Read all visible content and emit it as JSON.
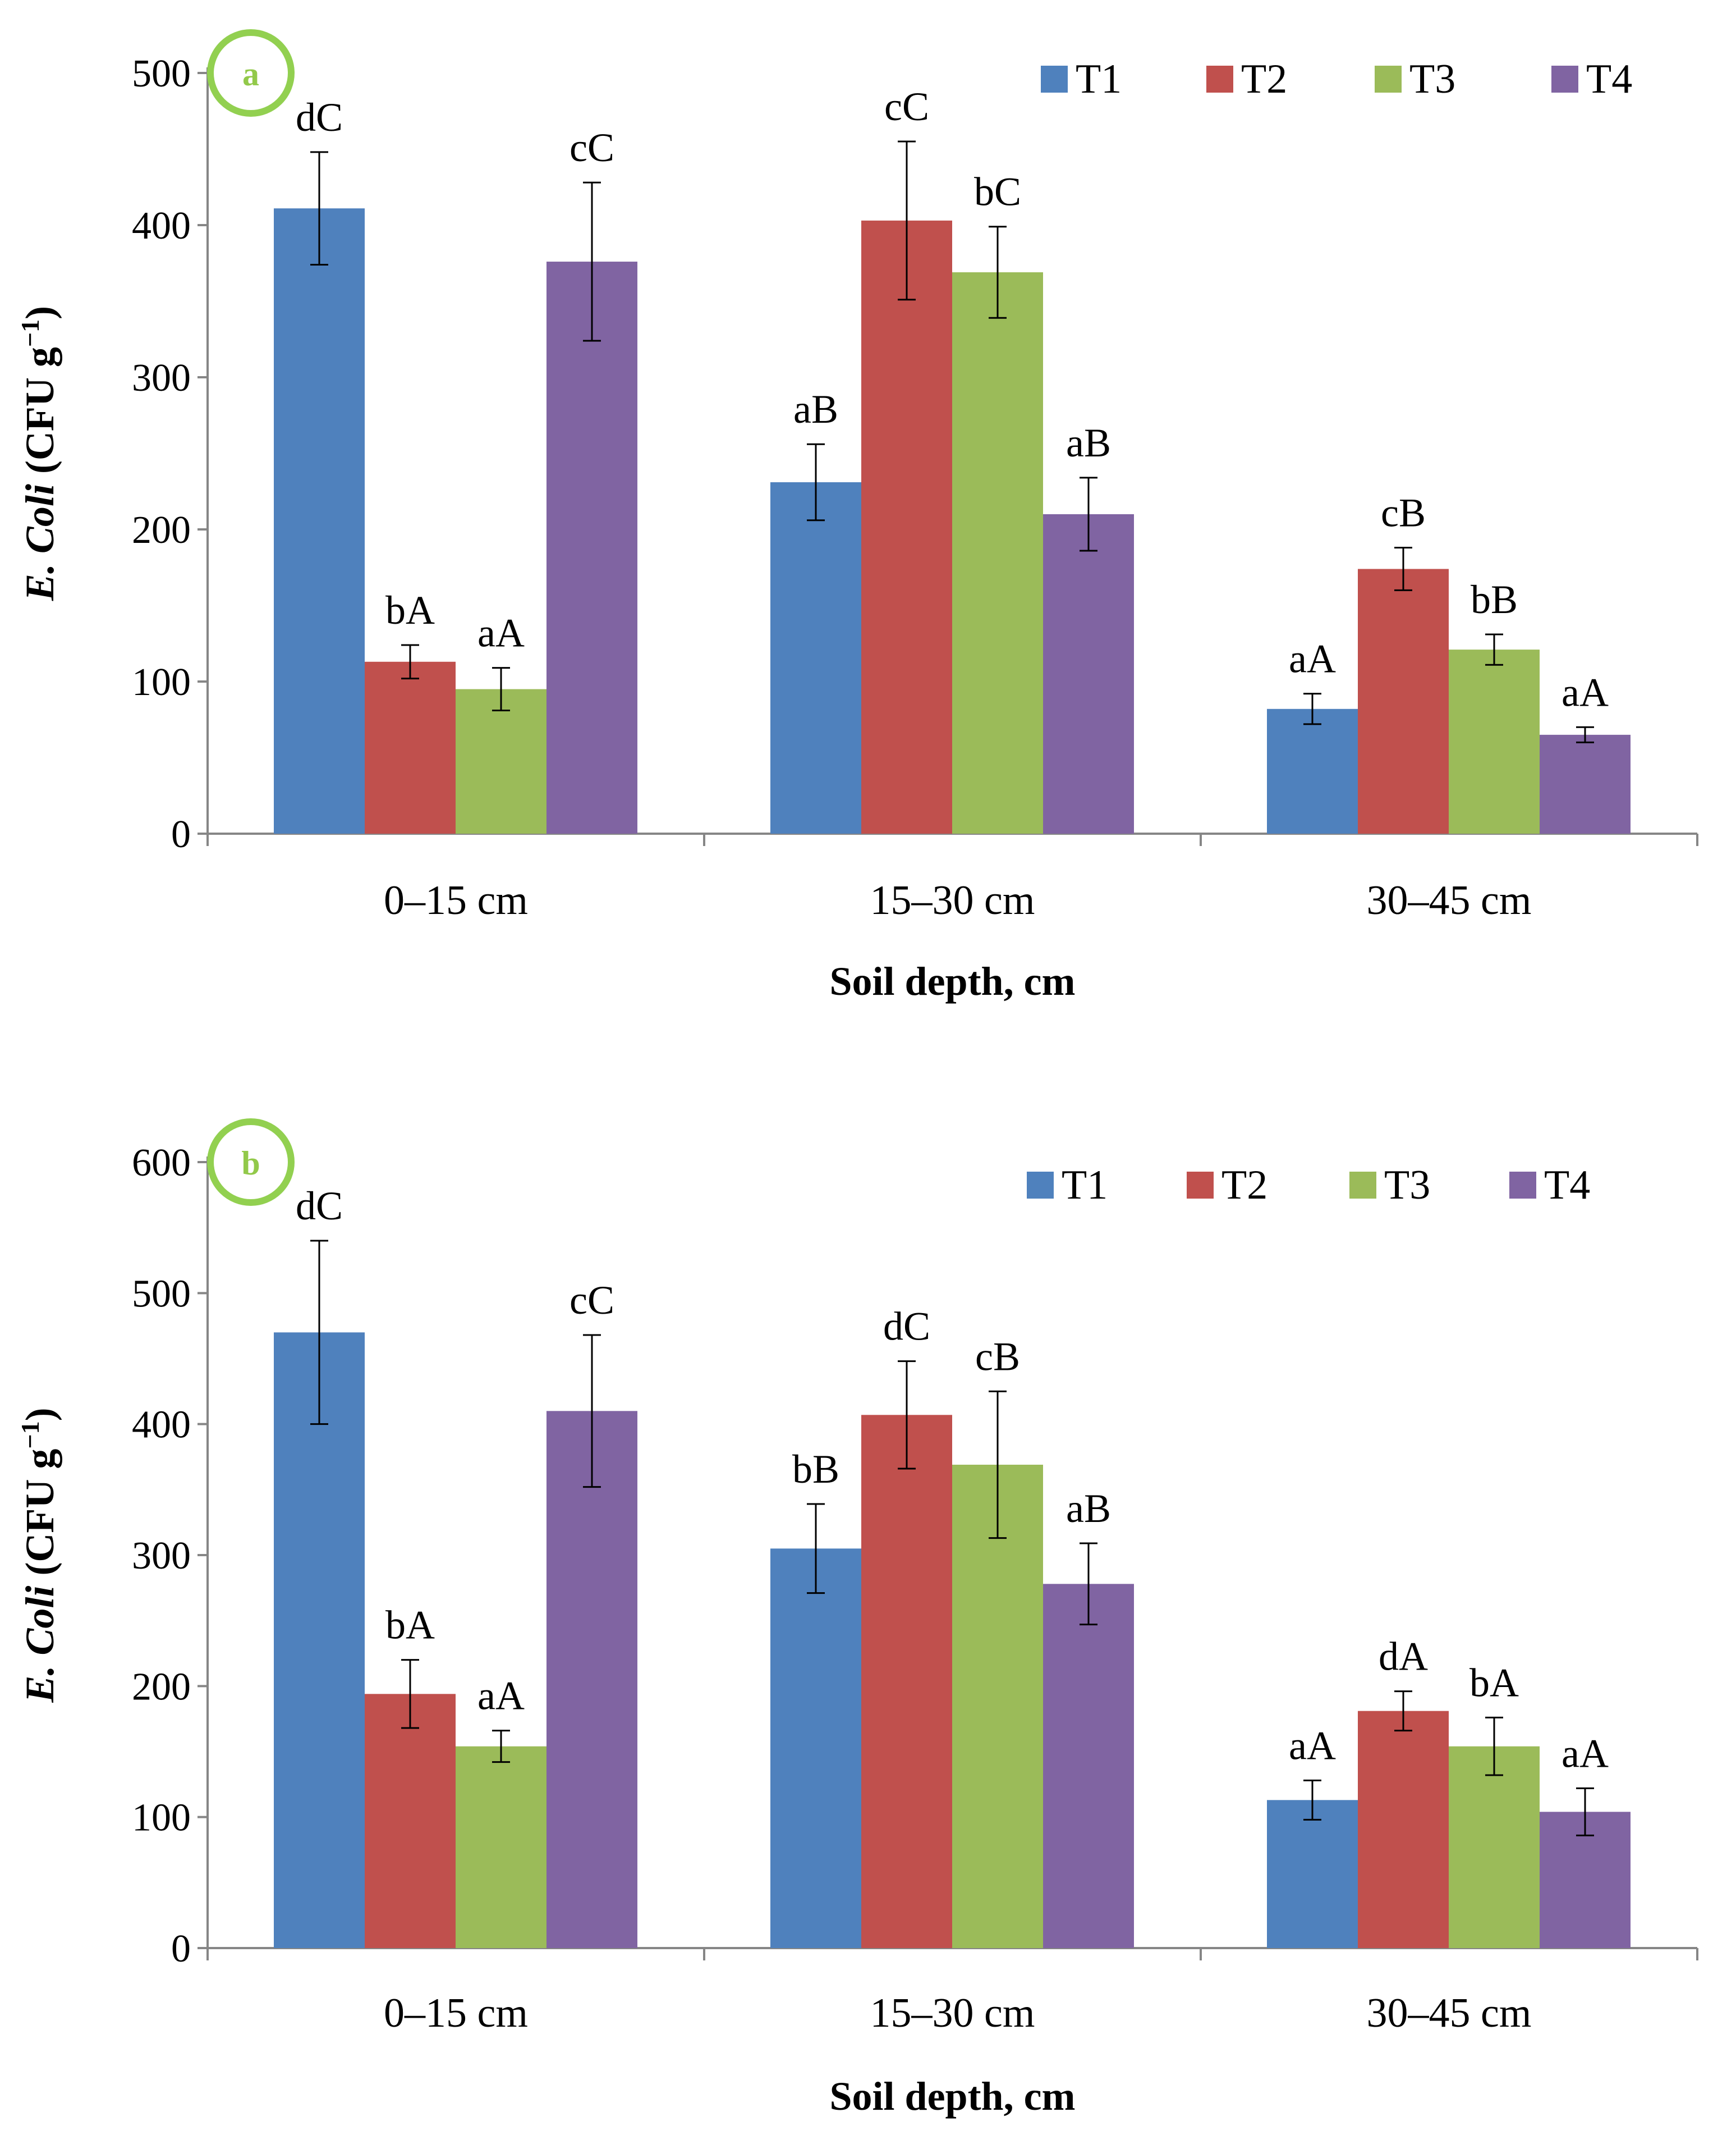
{
  "colors": {
    "T1": "#4f81bd",
    "T2": "#c0504d",
    "T3": "#9bbb59",
    "T4": "#8064a2",
    "panel_badge": "#92d050"
  },
  "chart_data": [
    {
      "type": "bar",
      "panel": "a",
      "title": "",
      "xlabel": "Soil depth, cm",
      "ylabel_italic": "E. Coli",
      "ylabel_unit": "(CFU g",
      "ylabel_sup": "−1",
      "ylabel_close": ")",
      "ylim": [
        0,
        500
      ],
      "yticks": [
        "0",
        "100",
        "200",
        "300",
        "400",
        "500"
      ],
      "categories": [
        "0–15 cm",
        "15–30 cm",
        "30–45 cm"
      ],
      "legend": [
        "T1",
        "T2",
        "T3",
        "T4"
      ],
      "legend_position": "top-right",
      "series": [
        {
          "name": "T1",
          "values": [
            411,
            231,
            82
          ],
          "errors": [
            37,
            25,
            10
          ],
          "labels": [
            "dC",
            "aB",
            "aA"
          ]
        },
        {
          "name": "T2",
          "values": [
            113,
            403,
            174
          ],
          "errors": [
            11,
            52,
            14
          ],
          "labels": [
            "bA",
            "cC",
            "cB"
          ]
        },
        {
          "name": "T3",
          "values": [
            95,
            369,
            121
          ],
          "errors": [
            14,
            30,
            10
          ],
          "labels": [
            "aA",
            "bC",
            "bB"
          ]
        },
        {
          "name": "T4",
          "values": [
            376,
            210,
            65
          ],
          "errors": [
            52,
            24,
            5
          ],
          "labels": [
            "cC",
            "aB",
            "aA"
          ]
        }
      ]
    },
    {
      "type": "bar",
      "panel": "b",
      "title": "",
      "xlabel": "Soil depth, cm",
      "ylabel_italic": "E. Coli",
      "ylabel_unit": "(CFU g",
      "ylabel_sup": "−1",
      "ylabel_close": ")",
      "ylim": [
        0,
        600
      ],
      "yticks": [
        "0",
        "100",
        "200",
        "300",
        "400",
        "500",
        "600"
      ],
      "categories": [
        "0–15 cm",
        "15–30 cm",
        "30–45 cm"
      ],
      "legend": [
        "T1",
        "T2",
        "T3",
        "T4"
      ],
      "legend_position": "top-right",
      "series": [
        {
          "name": "T1",
          "values": [
            470,
            305,
            113
          ],
          "errors": [
            70,
            34,
            15
          ],
          "labels": [
            "dC",
            "bB",
            "aA"
          ]
        },
        {
          "name": "T2",
          "values": [
            194,
            407,
            181
          ],
          "errors": [
            26,
            41,
            15
          ],
          "labels": [
            "bA",
            "dC",
            "dA"
          ]
        },
        {
          "name": "T3",
          "values": [
            154,
            369,
            154
          ],
          "errors": [
            12,
            56,
            22
          ],
          "labels": [
            "aA",
            "cB",
            "bA"
          ]
        },
        {
          "name": "T4",
          "values": [
            410,
            278,
            104
          ],
          "errors": [
            58,
            31,
            18
          ],
          "labels": [
            "cC",
            "aB",
            "aA"
          ]
        }
      ]
    }
  ]
}
